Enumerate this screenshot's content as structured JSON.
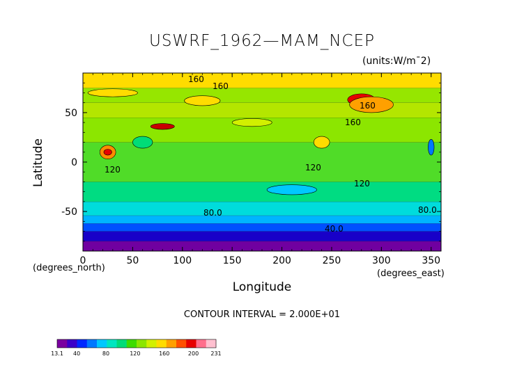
{
  "chart_data": {
    "type": "heatmap",
    "title": "USWRF_1962—MAM_NCEP",
    "units": "(units:W/m¯2)",
    "xlabel": "Longitude",
    "ylabel": "Latitude",
    "x_unit_label": "(degrees_north)",
    "x_unit_label_right": "(degrees_east)",
    "xlim": [
      0,
      360
    ],
    "ylim": [
      -90,
      90
    ],
    "xticks": [
      "0",
      "50",
      "100",
      "150",
      "200",
      "250",
      "300",
      "350"
    ],
    "yticks": [
      "-50",
      "0",
      "50"
    ],
    "contour_interval": "CONTOUR INTERVAL = 2.000E+01",
    "contour_labels": [
      "160",
      "160",
      "160",
      "160",
      "120",
      "120",
      "120",
      "80.0",
      "80.0",
      "40.0"
    ],
    "colorbar": {
      "min": 13.1,
      "max": 231,
      "labels": [
        "13.1",
        "40",
        "80",
        "120",
        "160",
        "200",
        "231"
      ],
      "colors": [
        "#7a00a0",
        "#3c00c8",
        "#0028ff",
        "#0078ff",
        "#00c8ff",
        "#00e6c0",
        "#00dc78",
        "#3cdc00",
        "#8ce600",
        "#d2f000",
        "#ffdc00",
        "#ffa000",
        "#ff5000",
        "#e60000",
        "#ff6e8c",
        "#ffc0d0"
      ]
    },
    "zonal_bands": [
      {
        "lat_from": -90,
        "lat_to": -80,
        "color": "#7000a0"
      },
      {
        "lat_from": -80,
        "lat_to": -70,
        "color": "#1800c8"
      },
      {
        "lat_from": -70,
        "lat_to": -62,
        "color": "#0050ff"
      },
      {
        "lat_from": -62,
        "lat_to": -54,
        "color": "#00b4ff"
      },
      {
        "lat_from": -54,
        "lat_to": -40,
        "color": "#00dcdc"
      },
      {
        "lat_from": -40,
        "lat_to": -20,
        "color": "#00dc82"
      },
      {
        "lat_from": -20,
        "lat_to": 20,
        "color": "#50dc28"
      },
      {
        "lat_from": 20,
        "lat_to": 45,
        "color": "#8ce600"
      },
      {
        "lat_from": 45,
        "lat_to": 60,
        "color": "#b4e600"
      },
      {
        "lat_from": 60,
        "lat_to": 75,
        "color": "#96e600"
      },
      {
        "lat_from": 75,
        "lat_to": 90,
        "color": "#ffdc00"
      }
    ],
    "features": [
      {
        "lon": 80,
        "lat": 36,
        "rx": 12,
        "ry": 3,
        "color": "#c80000"
      },
      {
        "lon": 280,
        "lat": 63,
        "rx": 14,
        "ry": 6,
        "color": "#e60000"
      },
      {
        "lon": 290,
        "lat": 58,
        "rx": 22,
        "ry": 8,
        "color": "#ffa000"
      },
      {
        "lon": 25,
        "lat": 10,
        "rx": 8,
        "ry": 7,
        "color": "#ff8c00"
      },
      {
        "lon": 25,
        "lat": 10,
        "rx": 4,
        "ry": 3,
        "color": "#e60000"
      },
      {
        "lon": 120,
        "lat": 62,
        "rx": 18,
        "ry": 5,
        "color": "#ffdc00"
      },
      {
        "lon": 30,
        "lat": 70,
        "rx": 25,
        "ry": 4,
        "color": "#ffdc00"
      },
      {
        "lon": 60,
        "lat": 20,
        "rx": 10,
        "ry": 6,
        "color": "#00dc78"
      },
      {
        "lon": 350,
        "lat": 15,
        "rx": 3,
        "ry": 8,
        "color": "#0078ff"
      },
      {
        "lon": 240,
        "lat": 20,
        "rx": 8,
        "ry": 6,
        "color": "#ffdc00"
      },
      {
        "lon": 170,
        "lat": 40,
        "rx": 20,
        "ry": 4,
        "color": "#d2f000"
      },
      {
        "lon": 210,
        "lat": -28,
        "rx": 25,
        "ry": 5,
        "color": "#00c8ff"
      }
    ]
  }
}
